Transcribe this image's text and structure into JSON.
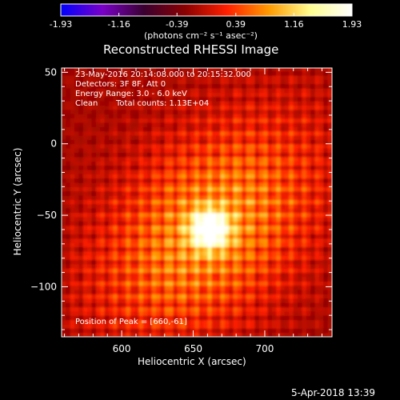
{
  "chart_data": {
    "type": "heatmap",
    "title": "Reconstructed RHESSI Image",
    "xlabel": "Heliocentric X (arcsec)",
    "ylabel": "Heliocentric Y (arcsec)",
    "xlim": [
      558,
      747
    ],
    "ylim": [
      -135,
      53
    ],
    "x_ticks": [
      600,
      650,
      700
    ],
    "y_ticks": [
      50,
      0,
      -50,
      -100
    ],
    "colorbar": {
      "label": "(photons cm⁻² s⁻¹ asec⁻²)",
      "ticks": [
        -1.93,
        -1.16,
        -0.39,
        0.39,
        1.16,
        1.93
      ],
      "tick_labels": [
        "-1.93",
        "-1.16",
        "-0.39",
        "0.39",
        "1.16",
        "1.93"
      ],
      "min": -1.93,
      "max": 1.93,
      "colormap": [
        "#0000ff",
        "#7a00c8",
        "#3a0030",
        "#8b0000",
        "#ff2000",
        "#ff9a00",
        "#ffff90",
        "#ffffff"
      ]
    },
    "peak": {
      "x": 660,
      "y": -61,
      "value": 1.93
    },
    "annotations": {
      "time_range": "23-May-2016 20:14:08.000 to 20:15:32.000",
      "detectors": "Detectors: 3F 8F, Att 0",
      "energy": "Energy Range: 3.0 - 6.0 keV",
      "clean": "Clean",
      "total_counts": "Total counts: 1.13E+04",
      "peak_label": "Position of Peak = [660,-61]"
    }
  },
  "footer": {
    "timestamp": "5-Apr-2018 13:39"
  }
}
